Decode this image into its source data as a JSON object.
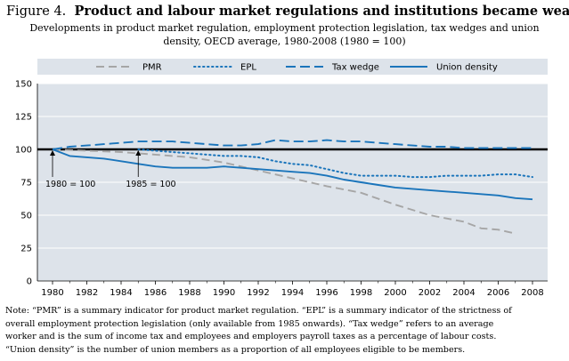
{
  "figure": {
    "number": "Figure 4.",
    "title": "Product and labour market regulations and institutions became weaker",
    "subtitle_line1": "Developments in product market regulation, employment protection legislation, tax wedges and union",
    "subtitle_line2": "density, OECD average, 1980-2008 (1980 = 100)",
    "note_lines": [
      "Note: “PMR” is a summary indicator for product market regulation. “EPL” is a summary indicator of the strictness of",
      "overall employment protection legislation (only available from 1985 onwards). “Tax wedge” refers to an average",
      "worker and is the sum of income tax and employees and employers payroll taxes as a percentage of labour costs.",
      "“Union density” is the number of union members as a proportion of all employees eligible to be members."
    ]
  },
  "chart_data": {
    "type": "line",
    "ylim": [
      0,
      150
    ],
    "xlim": [
      1980,
      2008
    ],
    "yticks": [
      0,
      25,
      50,
      75,
      100,
      125,
      150
    ],
    "xticks": [
      1980,
      1982,
      1984,
      1986,
      1988,
      1990,
      1992,
      1994,
      1996,
      1998,
      2000,
      2002,
      2004,
      2006,
      2008
    ],
    "reference_line": 100,
    "legend_position": "top",
    "annotations": [
      {
        "text": "1980 = 100",
        "year": 1980,
        "value": 100
      },
      {
        "text": "1985 = 100",
        "year": 1985,
        "value": 100
      }
    ],
    "series": [
      {
        "name": "PMR",
        "style": "dashed-gray",
        "color": "#a6a6a6",
        "x": [
          1980,
          1982,
          1984,
          1986,
          1988,
          1990,
          1992,
          1994,
          1996,
          1998,
          2000,
          2002,
          2004,
          2005,
          2006,
          2007
        ],
        "values": [
          100,
          99,
          98,
          96,
          94,
          90,
          84,
          78,
          72,
          67,
          58,
          50,
          45,
          40,
          39,
          36
        ]
      },
      {
        "name": "EPL",
        "style": "dotted-blue",
        "color": "#1b75bb",
        "x": [
          1985,
          1986,
          1987,
          1988,
          1989,
          1990,
          1991,
          1992,
          1993,
          1994,
          1995,
          1996,
          1997,
          1998,
          1999,
          2000,
          2001,
          2002,
          2003,
          2004,
          2005,
          2006,
          2007,
          2008
        ],
        "values": [
          100,
          99,
          98,
          97,
          96,
          95,
          95,
          94,
          91,
          89,
          88,
          85,
          82,
          80,
          80,
          80,
          79,
          79,
          80,
          80,
          80,
          81,
          81,
          79
        ]
      },
      {
        "name": "Tax wedge",
        "style": "dashed-blue",
        "color": "#1b75bb",
        "x": [
          1980,
          1981,
          1982,
          1983,
          1984,
          1985,
          1986,
          1987,
          1988,
          1989,
          1990,
          1991,
          1992,
          1993,
          1994,
          1995,
          1996,
          1997,
          1998,
          1999,
          2000,
          2001,
          2002,
          2003,
          2004,
          2005,
          2006,
          2007,
          2008
        ],
        "values": [
          100,
          102,
          103,
          104,
          105,
          106,
          106,
          106,
          105,
          104,
          103,
          103,
          104,
          107,
          106,
          106,
          107,
          106,
          106,
          105,
          104,
          103,
          102,
          102,
          101,
          101,
          101,
          101,
          101
        ]
      },
      {
        "name": "Union density",
        "style": "solid-blue",
        "color": "#1b75bb",
        "x": [
          1980,
          1981,
          1982,
          1983,
          1984,
          1985,
          1986,
          1987,
          1988,
          1989,
          1990,
          1991,
          1992,
          1993,
          1994,
          1995,
          1996,
          1997,
          1998,
          1999,
          2000,
          2001,
          2002,
          2003,
          2004,
          2005,
          2006,
          2007,
          2008
        ],
        "values": [
          100,
          95,
          94,
          93,
          91,
          89,
          87,
          86,
          86,
          86,
          87,
          86,
          85,
          84,
          83,
          82,
          80,
          77,
          75,
          73,
          71,
          70,
          69,
          68,
          67,
          66,
          65,
          63,
          62
        ]
      }
    ]
  }
}
